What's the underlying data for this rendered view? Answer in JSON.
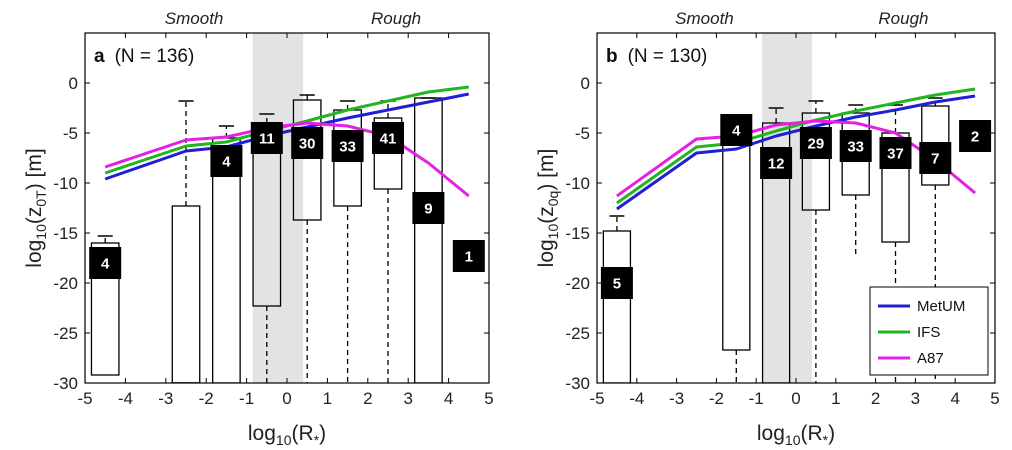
{
  "chart_data": [
    {
      "type": "box",
      "panel_label": "a",
      "title": "(N = 136)",
      "xlabel": "log10(R*)",
      "ylabel": "log10(z0T) [m]",
      "xlim": [
        -5,
        5
      ],
      "ylim": [
        -30,
        5
      ],
      "xticks": [
        "-5",
        "-4",
        "-3",
        "-2",
        "-1",
        "0",
        "1",
        "2",
        "3",
        "4",
        "5"
      ],
      "yticks": [
        "-30",
        "-25",
        "-20",
        "-15",
        "-10",
        "-5",
        "0"
      ],
      "regimes": [
        "Smooth",
        "Rough"
      ],
      "shaded_band": [
        -0.85,
        0.4
      ],
      "boxes": [
        {
          "x": -4.5,
          "q1": -29.2,
          "median": -18.0,
          "q3": -16.0,
          "whisker_low": -29.2,
          "whisker_high": -15.3,
          "count": "4",
          "label_y": -18.0
        },
        {
          "x": -2.5,
          "q1": -30.0,
          "median": -30.0,
          "q3": -12.3,
          "whisker_low": -30.0,
          "whisker_high": -1.8,
          "count": "",
          "label_y": null
        },
        {
          "x": -1.5,
          "q1": -30.0,
          "median": -7.8,
          "q3": -5.5,
          "whisker_low": -30.0,
          "whisker_high": -4.3,
          "count": "4",
          "label_y": -7.8
        },
        {
          "x": -0.5,
          "q1": -22.3,
          "median": -5.5,
          "q3": -4.0,
          "whisker_low": -30.0,
          "whisker_high": -3.1,
          "count": "11",
          "label_y": -5.5
        },
        {
          "x": 0.5,
          "q1": -13.7,
          "median": -6.0,
          "q3": -1.7,
          "whisker_low": -30.0,
          "whisker_high": -1.2,
          "count": "30",
          "label_y": -6.0
        },
        {
          "x": 1.5,
          "q1": -12.3,
          "median": -6.3,
          "q3": -2.7,
          "whisker_low": -30.0,
          "whisker_high": -1.8,
          "count": "33",
          "label_y": -6.3
        },
        {
          "x": 2.5,
          "q1": -10.6,
          "median": -5.5,
          "q3": -3.5,
          "whisker_low": -30.0,
          "whisker_high": -1.8,
          "count": "41",
          "label_y": -5.5
        },
        {
          "x": 3.5,
          "q1": -30.0,
          "median": -12.5,
          "q3": -1.5,
          "whisker_low": -30.0,
          "whisker_high": -1.5,
          "count": "9",
          "label_y": -12.5
        },
        {
          "x": 4.5,
          "q1": null,
          "median": -17.3,
          "q3": null,
          "whisker_low": null,
          "whisker_high": null,
          "count": "1",
          "label_y": -17.3
        }
      ],
      "series": [
        {
          "name": "MetUM",
          "color": "#1f1fd6",
          "x": [
            -4.5,
            -2.5,
            -1.5,
            -0.5,
            0.5,
            1.5,
            2.5,
            3.5,
            4.5
          ],
          "y": [
            -9.6,
            -6.8,
            -6.4,
            -5.3,
            -4.4,
            -3.5,
            -2.7,
            -1.9,
            -1.1
          ]
        },
        {
          "name": "IFS",
          "color": "#22b522",
          "x": [
            -4.5,
            -2.5,
            -1.5,
            -0.5,
            0.5,
            1.5,
            2.5,
            3.5,
            4.5
          ],
          "y": [
            -9.0,
            -6.3,
            -5.9,
            -4.8,
            -3.8,
            -2.7,
            -1.8,
            -0.9,
            -0.4
          ]
        },
        {
          "name": "A87",
          "color": "#e61ee6",
          "x": [
            -4.5,
            -2.5,
            -1.5,
            -0.5,
            0.5,
            1.5,
            2.5,
            3.5,
            4.5
          ],
          "y": [
            -8.4,
            -5.7,
            -5.4,
            -4.5,
            -4.0,
            -4.3,
            -5.3,
            -8.0,
            -11.3
          ]
        }
      ]
    },
    {
      "type": "box",
      "panel_label": "b",
      "title": "(N = 130)",
      "xlabel": "log10(R*)",
      "ylabel": "log10(z0q) [m]",
      "xlim": [
        -5,
        5
      ],
      "ylim": [
        -30,
        5
      ],
      "xticks": [
        "-5",
        "-4",
        "-3",
        "-2",
        "-1",
        "0",
        "1",
        "2",
        "3",
        "4",
        "5"
      ],
      "yticks": [
        "-30",
        "-25",
        "-20",
        "-15",
        "-10",
        "-5",
        "0"
      ],
      "regimes": [
        "Smooth",
        "Rough"
      ],
      "shaded_band": [
        -0.85,
        0.4
      ],
      "boxes": [
        {
          "x": -4.5,
          "q1": -30.0,
          "median": -20.0,
          "q3": -14.8,
          "whisker_low": -30.0,
          "whisker_high": -13.3,
          "count": "5",
          "label_y": -20.0
        },
        {
          "x": -1.5,
          "q1": -26.7,
          "median": -4.7,
          "q3": -3.5,
          "whisker_low": -30.0,
          "whisker_high": -3.2,
          "count": "4",
          "label_y": -4.7
        },
        {
          "x": -0.5,
          "q1": -30.0,
          "median": -8.0,
          "q3": -4.0,
          "whisker_low": -30.0,
          "whisker_high": -2.5,
          "count": "12",
          "label_y": -8.0
        },
        {
          "x": 0.5,
          "q1": -12.7,
          "median": -6.0,
          "q3": -3.0,
          "whisker_low": -30.0,
          "whisker_high": -1.8,
          "count": "29",
          "label_y": -6.0
        },
        {
          "x": 1.5,
          "q1": -11.2,
          "median": -6.3,
          "q3": -3.0,
          "whisker_low": -17.3,
          "whisker_high": -2.2,
          "count": "33",
          "label_y": -6.3
        },
        {
          "x": 2.5,
          "q1": -15.9,
          "median": -7.0,
          "q3": -5.0,
          "whisker_low": -30.0,
          "whisker_high": -2.2,
          "count": "37",
          "label_y": -7.0
        },
        {
          "x": 3.5,
          "q1": -10.2,
          "median": -7.5,
          "q3": -2.3,
          "whisker_low": -30.0,
          "whisker_high": -1.5,
          "count": "7",
          "label_y": -7.5
        },
        {
          "x": 4.5,
          "q1": null,
          "median": -5.3,
          "q3": null,
          "whisker_low": null,
          "whisker_high": null,
          "count": "2",
          "label_y": -5.3
        }
      ],
      "series": [
        {
          "name": "MetUM",
          "color": "#1f1fd6",
          "x": [
            -4.5,
            -2.5,
            -1.5,
            -0.5,
            0.5,
            1.5,
            2.5,
            3.5,
            4.5
          ],
          "y": [
            -12.6,
            -7.0,
            -6.6,
            -5.3,
            -4.3,
            -3.4,
            -2.7,
            -1.9,
            -1.3
          ]
        },
        {
          "name": "IFS",
          "color": "#22b522",
          "x": [
            -4.5,
            -2.5,
            -1.5,
            -0.5,
            0.5,
            1.5,
            2.5,
            3.5,
            4.5
          ],
          "y": [
            -12.0,
            -6.4,
            -6.0,
            -4.8,
            -3.7,
            -2.8,
            -2.0,
            -1.2,
            -0.6
          ]
        },
        {
          "name": "A87",
          "color": "#e61ee6",
          "x": [
            -4.5,
            -2.5,
            -1.5,
            -0.5,
            0.5,
            1.5,
            2.5,
            3.5,
            4.5
          ],
          "y": [
            -11.3,
            -5.6,
            -5.3,
            -4.2,
            -3.8,
            -4.0,
            -5.0,
            -7.7,
            -11.0
          ]
        }
      ]
    }
  ],
  "legend": {
    "placement": "bottom-right of panel b",
    "entries": [
      {
        "name": "MetUM",
        "color": "#1f1fd6"
      },
      {
        "name": "IFS",
        "color": "#22b522"
      },
      {
        "name": "A87",
        "color": "#e61ee6"
      }
    ]
  }
}
